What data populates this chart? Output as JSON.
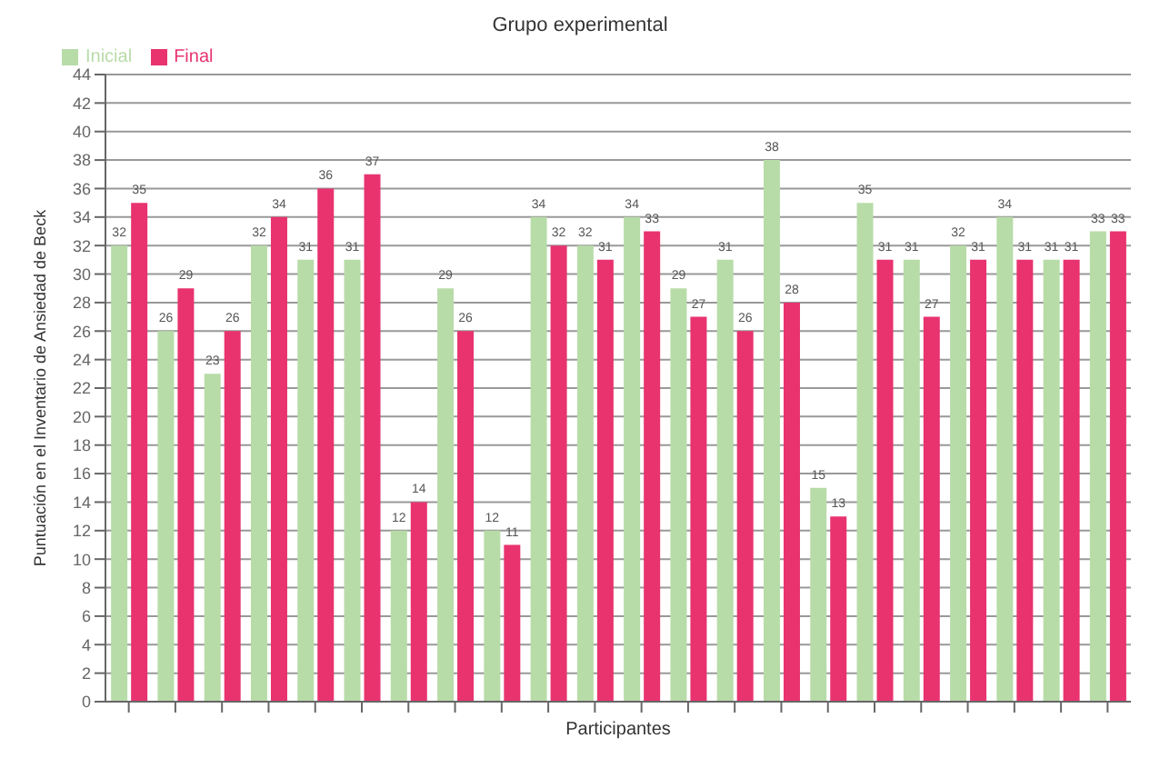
{
  "chart_data": {
    "type": "bar",
    "title": "Grupo experimental",
    "xlabel": "Participantes",
    "ylabel": "Puntuación en el Inventario de Ansiedad de Beck",
    "categories": [
      null,
      null,
      null,
      null,
      null,
      null,
      null,
      null,
      null,
      null,
      null,
      null,
      null,
      null,
      null,
      null,
      null,
      null,
      null,
      null,
      null,
      null
    ],
    "series": [
      {
        "name": "Inicial",
        "color": "#b8dca8",
        "values": [
          32,
          26,
          23,
          32,
          31,
          31,
          12,
          29,
          12,
          34,
          32,
          34,
          29,
          31,
          38,
          15,
          35,
          31,
          32,
          34,
          31,
          33
        ]
      },
      {
        "name": "Final",
        "color": "#e8336f",
        "values": [
          35,
          29,
          26,
          34,
          36,
          37,
          14,
          26,
          11,
          32,
          31,
          33,
          27,
          26,
          28,
          13,
          31,
          27,
          31,
          31,
          31,
          33
        ]
      }
    ],
    "ylim": [
      0,
      44
    ],
    "yticks": [
      0,
      2,
      4,
      6,
      8,
      10,
      12,
      14,
      16,
      18,
      20,
      22,
      24,
      26,
      28,
      30,
      32,
      34,
      36,
      38,
      40,
      42,
      44
    ],
    "grid": "y",
    "legend": "top left",
    "data_labels": true
  }
}
